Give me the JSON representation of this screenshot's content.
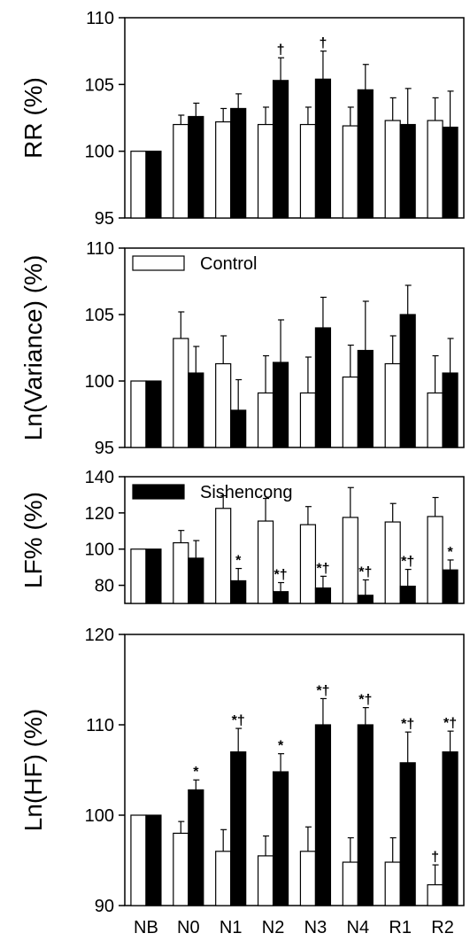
{
  "chart_data": [
    {
      "type": "bar",
      "ylabel": "RR (%)",
      "ylim": [
        95,
        110
      ],
      "yticks": [
        95,
        100,
        105,
        110
      ],
      "categories": [
        "NB",
        "N0",
        "N1",
        "N2",
        "N3",
        "N4",
        "R1",
        "R2"
      ],
      "series": [
        {
          "name": "Control",
          "color": "#ffffff",
          "values": [
            100,
            102,
            102.2,
            102,
            102,
            101.9,
            102.3,
            102.3
          ],
          "errors": [
            0,
            0.7,
            1.0,
            1.3,
            1.3,
            1.4,
            1.7,
            1.7
          ],
          "annotations": [
            "",
            "",
            "",
            "",
            "",
            "",
            "",
            ""
          ]
        },
        {
          "name": "Sishencong",
          "color": "#000000",
          "values": [
            100,
            102.6,
            103.2,
            105.3,
            105.4,
            104.6,
            102,
            101.8
          ],
          "errors": [
            0,
            1.0,
            1.1,
            1.7,
            2.1,
            1.9,
            2.7,
            2.7
          ],
          "annotations": [
            "",
            "",
            "",
            "†",
            "†",
            "",
            "",
            ""
          ]
        }
      ],
      "legend": ""
    },
    {
      "type": "bar",
      "ylabel": "Ln(Variance) (%)",
      "ylim": [
        95,
        110
      ],
      "yticks": [
        95,
        100,
        105,
        110
      ],
      "categories": [
        "NB",
        "N0",
        "N1",
        "N2",
        "N3",
        "N4",
        "R1",
        "R2"
      ],
      "series": [
        {
          "name": "Control",
          "color": "#ffffff",
          "values": [
            100,
            103.2,
            101.3,
            99.1,
            99.1,
            100.3,
            101.3,
            99.1
          ],
          "errors": [
            0,
            2.0,
            2.1,
            2.8,
            2.7,
            2.4,
            2.1,
            2.8
          ],
          "annotations": [
            "",
            "",
            "",
            "",
            "",
            "",
            "",
            ""
          ]
        },
        {
          "name": "Sishencong",
          "color": "#000000",
          "values": [
            100,
            100.6,
            97.8,
            101.4,
            104,
            102.3,
            105,
            100.6
          ],
          "errors": [
            0,
            2.0,
            2.3,
            3.2,
            2.3,
            3.7,
            2.2,
            2.6
          ],
          "annotations": [
            "",
            "",
            "",
            "",
            "",
            "",
            "",
            ""
          ]
        }
      ],
      "legend": "top-left",
      "legend_entry": "Control"
    },
    {
      "type": "bar",
      "ylabel": "LF% (%)",
      "ylim": [
        70,
        140
      ],
      "yticks": [
        80,
        100,
        120,
        140
      ],
      "categories": [
        "NB",
        "N0",
        "N1",
        "N2",
        "N3",
        "N4",
        "R1",
        "R2"
      ],
      "series": [
        {
          "name": "Control",
          "color": "#ffffff",
          "values": [
            100,
            103.5,
            122.5,
            115.5,
            113.5,
            117.5,
            115,
            118
          ],
          "errors": [
            0,
            6.8,
            7,
            12.5,
            10,
            16.5,
            10.2,
            10.5
          ],
          "annotations": [
            "",
            "",
            "",
            "",
            "",
            "",
            "",
            ""
          ]
        },
        {
          "name": "Sishencong",
          "color": "#000000",
          "values": [
            100,
            95,
            82.5,
            76.5,
            78.5,
            74.5,
            79.5,
            88.5
          ],
          "errors": [
            0,
            9.7,
            6.8,
            5,
            6.5,
            8.5,
            9.3,
            5.5
          ],
          "annotations": [
            "",
            "",
            "*",
            "*†",
            "*†",
            "*†",
            "*†",
            "*"
          ]
        }
      ],
      "legend": "top-left",
      "legend_entry": "Sishencong"
    },
    {
      "type": "bar",
      "ylabel": "Ln(HF) (%)",
      "ylim": [
        90,
        120
      ],
      "yticks": [
        90,
        100,
        110,
        120
      ],
      "categories": [
        "NB",
        "N0",
        "N1",
        "N2",
        "N3",
        "N4",
        "R1",
        "R2"
      ],
      "series": [
        {
          "name": "Control",
          "color": "#ffffff",
          "values": [
            100,
            98,
            96,
            95.5,
            96,
            94.8,
            94.8,
            92.3
          ],
          "errors": [
            0,
            1.3,
            2.4,
            2.2,
            2.7,
            2.7,
            2.7,
            2.2
          ],
          "annotations": [
            "",
            "",
            "",
            "",
            "",
            "",
            "",
            "†"
          ]
        },
        {
          "name": "Sishencong",
          "color": "#000000",
          "values": [
            100,
            102.8,
            107,
            104.8,
            110,
            110,
            105.8,
            107
          ],
          "errors": [
            0,
            1.1,
            2.6,
            2.0,
            2.9,
            1.9,
            3.4,
            2.3
          ],
          "annotations": [
            "",
            "*",
            "*†",
            "*",
            "*†",
            "*†",
            "*†",
            "*†"
          ]
        }
      ],
      "legend": ""
    }
  ]
}
